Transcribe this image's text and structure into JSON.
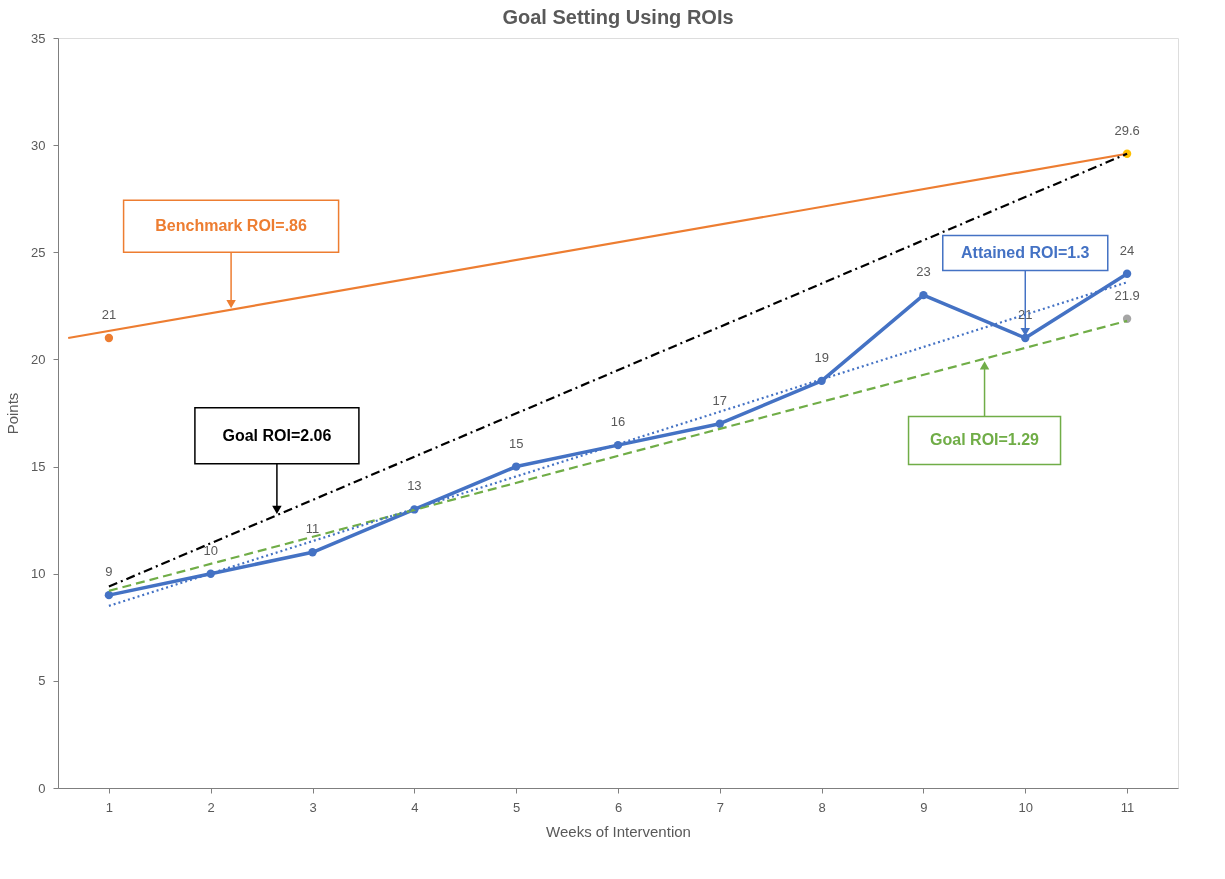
{
  "chart_data": {
    "type": "line",
    "title": "Goal Setting Using ROIs",
    "xlabel": "Weeks of Intervention",
    "ylabel": "Points",
    "xlim": [
      0.5,
      11.5
    ],
    "xticks": [
      1,
      2,
      3,
      4,
      5,
      6,
      7,
      8,
      9,
      10,
      11
    ],
    "ylim": [
      0,
      35
    ],
    "yticks": [
      0,
      5,
      10,
      15,
      20,
      25,
      30,
      35
    ],
    "grid": false,
    "series": [
      {
        "color": "#4472c4",
        "x": [
          1,
          2,
          3,
          4,
          5,
          6,
          7,
          8,
          9,
          10,
          11
        ],
        "values": [
          9,
          10,
          11,
          13,
          15,
          16,
          17,
          19,
          23,
          21,
          24
        ],
        "marker": "circle",
        "line_style": "solid",
        "value_labels": [
          "9",
          "10",
          "11",
          "13",
          "15",
          "16",
          "17",
          "19",
          "23",
          "21",
          "24"
        ]
      },
      {
        "type": "scatter",
        "color": "#ed7d31",
        "x": [
          1
        ],
        "values": [
          21
        ],
        "marker": "circle",
        "value_labels": [
          "21"
        ]
      },
      {
        "type": "scatter",
        "color": "#ffc000",
        "x": [
          11
        ],
        "values": [
          29.6
        ],
        "marker": "circle",
        "value_labels": [
          "29.6"
        ]
      },
      {
        "type": "scatter",
        "color": "#a5a5a5",
        "x": [
          11
        ],
        "values": [
          21.9
        ],
        "marker": "circle",
        "value_labels": [
          "21.9"
        ]
      },
      {
        "color": "#ed7d31",
        "x": [
          0.6,
          11
        ],
        "values": [
          21.0,
          29.6
        ],
        "marker": "none",
        "line_style": "solid"
      },
      {
        "color": "#000000",
        "x": [
          1,
          11
        ],
        "values": [
          9.4,
          29.6
        ],
        "marker": "none",
        "line_style": "dashdot"
      },
      {
        "color": "#70ad47",
        "x": [
          1,
          11
        ],
        "values": [
          9.2,
          21.8
        ],
        "marker": "none",
        "line_style": "dashed"
      },
      {
        "color": "#4472c4",
        "x": [
          1,
          11
        ],
        "values": [
          8.5,
          23.6
        ],
        "marker": "none",
        "line_style": "dotted"
      }
    ],
    "annotations": [
      {
        "text": "Benchmark ROI=.86",
        "x": 2.2,
        "y": 22.3
      },
      {
        "text": "Goal ROI=2.06",
        "x": 2.65,
        "y": 12.7
      },
      {
        "text": "Attained ROI=1.3",
        "x": 10,
        "y": 21
      },
      {
        "text": "Goal ROI=1.29",
        "x": 9.6,
        "y": 20.0
      }
    ]
  }
}
